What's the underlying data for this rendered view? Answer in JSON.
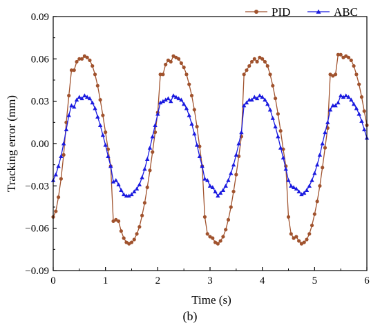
{
  "figure_label": "(b)",
  "chart_data": {
    "type": "line",
    "xlabel": "Time (s)",
    "ylabel": "Tracking error (mm)",
    "xlim": [
      0,
      6
    ],
    "ylim": [
      -0.09,
      0.09
    ],
    "xticks": [
      0,
      1,
      2,
      3,
      4,
      5,
      6
    ],
    "yticks": [
      -0.09,
      -0.06,
      -0.03,
      0.0,
      0.03,
      0.06,
      0.09
    ],
    "xtick_labels": [
      "0",
      "1",
      "2",
      "3",
      "4",
      "5",
      "6"
    ],
    "ytick_labels": [
      "−0.09",
      "−0.06",
      "−0.03",
      "0.00",
      "0.03",
      "0.06",
      "0.09"
    ],
    "legend_position": "top-right",
    "grid": false,
    "series": [
      {
        "name": "PID",
        "color": "#a0522d",
        "marker": "circle",
        "x": [
          0.0,
          0.05,
          0.1,
          0.15,
          0.2,
          0.25,
          0.3,
          0.35,
          0.4,
          0.45,
          0.5,
          0.55,
          0.6,
          0.65,
          0.7,
          0.75,
          0.8,
          0.85,
          0.9,
          0.95,
          1.0,
          1.05,
          1.1,
          1.15,
          1.2,
          1.25,
          1.3,
          1.35,
          1.4,
          1.45,
          1.5,
          1.55,
          1.6,
          1.65,
          1.7,
          1.75,
          1.8,
          1.85,
          1.9,
          1.95,
          2.0,
          2.05,
          2.1,
          2.15,
          2.2,
          2.25,
          2.3,
          2.35,
          2.4,
          2.45,
          2.5,
          2.55,
          2.6,
          2.65,
          2.7,
          2.75,
          2.8,
          2.85,
          2.9,
          2.95,
          3.0,
          3.05,
          3.1,
          3.15,
          3.2,
          3.25,
          3.3,
          3.35,
          3.4,
          3.45,
          3.5,
          3.55,
          3.6,
          3.65,
          3.7,
          3.75,
          3.8,
          3.85,
          3.9,
          3.95,
          4.0,
          4.05,
          4.1,
          4.15,
          4.2,
          4.25,
          4.3,
          4.35,
          4.4,
          4.45,
          4.5,
          4.55,
          4.6,
          4.65,
          4.7,
          4.75,
          4.8,
          4.85,
          4.9,
          4.95,
          5.0,
          5.05,
          5.1,
          5.15,
          5.2,
          5.25,
          5.3,
          5.35,
          5.4,
          5.45,
          5.5,
          5.55,
          5.6,
          5.65,
          5.7,
          5.75,
          5.8,
          5.85,
          5.9,
          5.95,
          6.0
        ],
        "y": [
          -0.052,
          -0.048,
          -0.038,
          -0.025,
          -0.008,
          0.015,
          0.034,
          0.052,
          0.052,
          0.058,
          0.06,
          0.06,
          0.062,
          0.061,
          0.059,
          0.055,
          0.049,
          0.041,
          0.031,
          0.02,
          0.008,
          -0.004,
          -0.016,
          -0.055,
          -0.054,
          -0.055,
          -0.062,
          -0.067,
          -0.07,
          -0.071,
          -0.07,
          -0.068,
          -0.064,
          -0.059,
          -0.051,
          -0.042,
          -0.031,
          -0.019,
          -0.006,
          0.008,
          0.022,
          0.049,
          0.049,
          0.056,
          0.059,
          0.058,
          0.062,
          0.061,
          0.06,
          0.057,
          0.054,
          0.049,
          0.042,
          0.034,
          0.024,
          0.012,
          -0.002,
          -0.016,
          -0.052,
          -0.064,
          -0.066,
          -0.067,
          -0.07,
          -0.071,
          -0.069,
          -0.066,
          -0.061,
          -0.054,
          -0.045,
          -0.034,
          -0.022,
          -0.009,
          0.005,
          0.049,
          0.052,
          0.055,
          0.058,
          0.06,
          0.058,
          0.061,
          0.06,
          0.058,
          0.055,
          0.049,
          0.041,
          0.032,
          0.021,
          0.009,
          -0.004,
          -0.016,
          -0.052,
          -0.064,
          -0.067,
          -0.066,
          -0.069,
          -0.071,
          -0.07,
          -0.068,
          -0.064,
          -0.058,
          -0.05,
          -0.041,
          -0.03,
          -0.017,
          -0.003,
          0.011,
          0.049,
          0.048,
          0.049,
          0.063,
          0.063,
          0.061,
          0.062,
          0.061,
          0.059,
          0.055,
          0.049,
          0.042,
          0.033,
          0.023,
          0.013
        ]
      },
      {
        "name": "ABC",
        "color": "#1a1adf",
        "marker": "triangle",
        "x": [
          0.0,
          0.05,
          0.1,
          0.15,
          0.2,
          0.25,
          0.3,
          0.35,
          0.4,
          0.45,
          0.5,
          0.55,
          0.6,
          0.65,
          0.7,
          0.75,
          0.8,
          0.85,
          0.9,
          0.95,
          1.0,
          1.05,
          1.1,
          1.15,
          1.2,
          1.25,
          1.3,
          1.35,
          1.4,
          1.45,
          1.5,
          1.55,
          1.6,
          1.65,
          1.7,
          1.75,
          1.8,
          1.85,
          1.9,
          1.95,
          2.0,
          2.05,
          2.1,
          2.15,
          2.2,
          2.25,
          2.3,
          2.35,
          2.4,
          2.45,
          2.5,
          2.55,
          2.6,
          2.65,
          2.7,
          2.75,
          2.8,
          2.85,
          2.9,
          2.95,
          3.0,
          3.05,
          3.1,
          3.15,
          3.2,
          3.25,
          3.3,
          3.35,
          3.4,
          3.45,
          3.5,
          3.55,
          3.6,
          3.65,
          3.7,
          3.75,
          3.8,
          3.85,
          3.9,
          3.95,
          4.0,
          4.05,
          4.1,
          4.15,
          4.2,
          4.25,
          4.3,
          4.35,
          4.4,
          4.45,
          4.5,
          4.55,
          4.6,
          4.65,
          4.7,
          4.75,
          4.8,
          4.85,
          4.9,
          4.95,
          5.0,
          5.05,
          5.1,
          5.15,
          5.2,
          5.25,
          5.3,
          5.35,
          5.4,
          5.45,
          5.5,
          5.55,
          5.6,
          5.65,
          5.7,
          5.75,
          5.8,
          5.85,
          5.9,
          5.95,
          6.0
        ],
        "y": [
          -0.026,
          -0.022,
          -0.016,
          -0.009,
          0.0,
          0.01,
          0.02,
          0.027,
          0.026,
          0.031,
          0.033,
          0.032,
          0.034,
          0.033,
          0.032,
          0.029,
          0.025,
          0.019,
          0.013,
          0.006,
          -0.001,
          -0.009,
          -0.016,
          -0.027,
          -0.026,
          -0.029,
          -0.033,
          -0.036,
          -0.037,
          -0.037,
          -0.036,
          -0.034,
          -0.032,
          -0.029,
          -0.024,
          -0.018,
          -0.011,
          -0.003,
          0.005,
          0.013,
          0.021,
          0.029,
          0.03,
          0.031,
          0.032,
          0.03,
          0.034,
          0.033,
          0.032,
          0.031,
          0.028,
          0.025,
          0.02,
          0.014,
          0.007,
          -0.001,
          -0.009,
          -0.016,
          -0.025,
          -0.026,
          -0.03,
          -0.031,
          -0.034,
          -0.037,
          -0.035,
          -0.033,
          -0.03,
          -0.026,
          -0.021,
          -0.015,
          -0.008,
          0.0,
          0.008,
          0.027,
          0.029,
          0.031,
          0.031,
          0.033,
          0.032,
          0.034,
          0.033,
          0.031,
          0.028,
          0.024,
          0.018,
          0.012,
          0.005,
          -0.003,
          -0.01,
          -0.018,
          -0.026,
          -0.03,
          -0.031,
          -0.032,
          -0.034,
          -0.036,
          -0.035,
          -0.033,
          -0.03,
          -0.026,
          -0.021,
          -0.015,
          -0.008,
          0.0,
          0.008,
          0.015,
          0.024,
          0.027,
          0.027,
          0.029,
          0.034,
          0.033,
          0.034,
          0.033,
          0.031,
          0.028,
          0.025,
          0.021,
          0.016,
          0.01,
          0.004
        ]
      }
    ]
  }
}
